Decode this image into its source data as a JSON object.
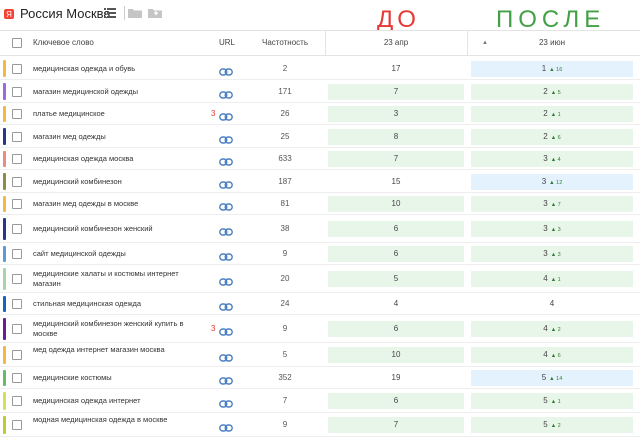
{
  "toolbar": {
    "region_title": "Россия Москва",
    "list_icon": "list-icon",
    "folder_icon": "folder-icon",
    "folder_add_icon": "folder-plus-icon"
  },
  "overlay": {
    "before": "ДО",
    "after": "ПОСЛЕ"
  },
  "table": {
    "headers": {
      "keyword": "Ключевое слово",
      "url": "URL",
      "frequency": "Частотность",
      "date_before": "23 апр",
      "date_after": "23 июн",
      "sort_arrow": "▲"
    },
    "rows": [
      {
        "keyword": "медицинская одежда и обувь",
        "badge": "",
        "freq": "2",
        "apr": "17",
        "apr_bg": "none",
        "jun": "1",
        "chg": "▲ 16",
        "jun_bg": "blue",
        "strip": "#f4b942"
      },
      {
        "keyword": "магазин медицинской одежды",
        "badge": "",
        "freq": "171",
        "apr": "7",
        "apr_bg": "green",
        "jun": "2",
        "chg": "▲ 5",
        "jun_bg": "green",
        "strip": "#9c6ade"
      },
      {
        "keyword": "платье медицинское",
        "badge": "3",
        "freq": "26",
        "apr": "3",
        "apr_bg": "green",
        "jun": "2",
        "chg": "▲ 1",
        "jun_bg": "green",
        "strip": "#f4b942"
      },
      {
        "keyword": "магазин мед одежды",
        "badge": "",
        "freq": "25",
        "apr": "8",
        "apr_bg": "green",
        "jun": "2",
        "chg": "▲ 6",
        "jun_bg": "green",
        "strip": "#283593"
      },
      {
        "keyword": "медицинская одежда москва",
        "badge": "",
        "freq": "633",
        "apr": "7",
        "apr_bg": "green",
        "jun": "3",
        "chg": "▲ 4",
        "jun_bg": "green",
        "strip": "#ef8a80"
      },
      {
        "keyword": "медицинский комбинезон",
        "badge": "",
        "freq": "187",
        "apr": "15",
        "apr_bg": "none",
        "jun": "3",
        "chg": "▲ 12",
        "jun_bg": "blue",
        "strip": "#8d8d4a"
      },
      {
        "keyword": "магазин мед одежды в москве",
        "badge": "",
        "freq": "81",
        "apr": "10",
        "apr_bg": "green",
        "jun": "3",
        "chg": "▲ 7",
        "jun_bg": "green",
        "strip": "#f4b942"
      },
      {
        "keyword": "медицинский комбинезон женский",
        "badge": "",
        "freq": "38",
        "apr": "6",
        "apr_bg": "green",
        "jun": "3",
        "chg": "▲ 3",
        "jun_bg": "green",
        "strip": "#283593"
      },
      {
        "keyword": "сайт медицинской одежды",
        "badge": "",
        "freq": "9",
        "apr": "6",
        "apr_bg": "green",
        "jun": "3",
        "chg": "▲ 3",
        "jun_bg": "green",
        "strip": "#5b9bd5"
      },
      {
        "keyword": "медицинские халаты и костюмы интернет магазин",
        "badge": "",
        "freq": "20",
        "apr": "5",
        "apr_bg": "green",
        "jun": "4",
        "chg": "▲ 1",
        "jun_bg": "green",
        "strip": "#a5d6a7"
      },
      {
        "keyword": "стильная медицинская одежда",
        "badge": "",
        "freq": "24",
        "apr": "4",
        "apr_bg": "none",
        "jun": "4",
        "chg": "",
        "jun_bg": "none",
        "strip": "#1565c0"
      },
      {
        "keyword": "медицинский комбинезон женский купить в москве",
        "badge": "3",
        "freq": "9",
        "apr": "6",
        "apr_bg": "green",
        "jun": "4",
        "chg": "▲ 2",
        "jun_bg": "green",
        "strip": "#6a1b9a"
      },
      {
        "keyword": "мед одежда интернет магазин москва",
        "badge": "",
        "freq": "5",
        "apr": "10",
        "apr_bg": "green",
        "jun": "4",
        "chg": "▲ 6",
        "jun_bg": "green",
        "strip": "#f4b942"
      },
      {
        "keyword": "медицинские костюмы",
        "badge": "",
        "freq": "352",
        "apr": "19",
        "apr_bg": "none",
        "jun": "5",
        "chg": "▲ 14",
        "jun_bg": "blue",
        "strip": "#66bb6a"
      },
      {
        "keyword": "медицинская одежда интернет",
        "badge": "",
        "freq": "7",
        "apr": "6",
        "apr_bg": "green",
        "jun": "5",
        "chg": "▲ 1",
        "jun_bg": "green",
        "strip": "#d4e157"
      },
      {
        "keyword": "модная медицинская одежда в москве",
        "badge": "",
        "freq": "9",
        "apr": "7",
        "apr_bg": "green",
        "jun": "5",
        "chg": "▲ 2",
        "jun_bg": "green",
        "strip": "#c0ca33"
      }
    ]
  },
  "colors": {
    "accent_red": "#e53935",
    "accent_green": "#43a047",
    "improved_bg": "#e8f5e9",
    "top_bg": "#e3f2fd",
    "link_icon": "#4a7fc1"
  }
}
